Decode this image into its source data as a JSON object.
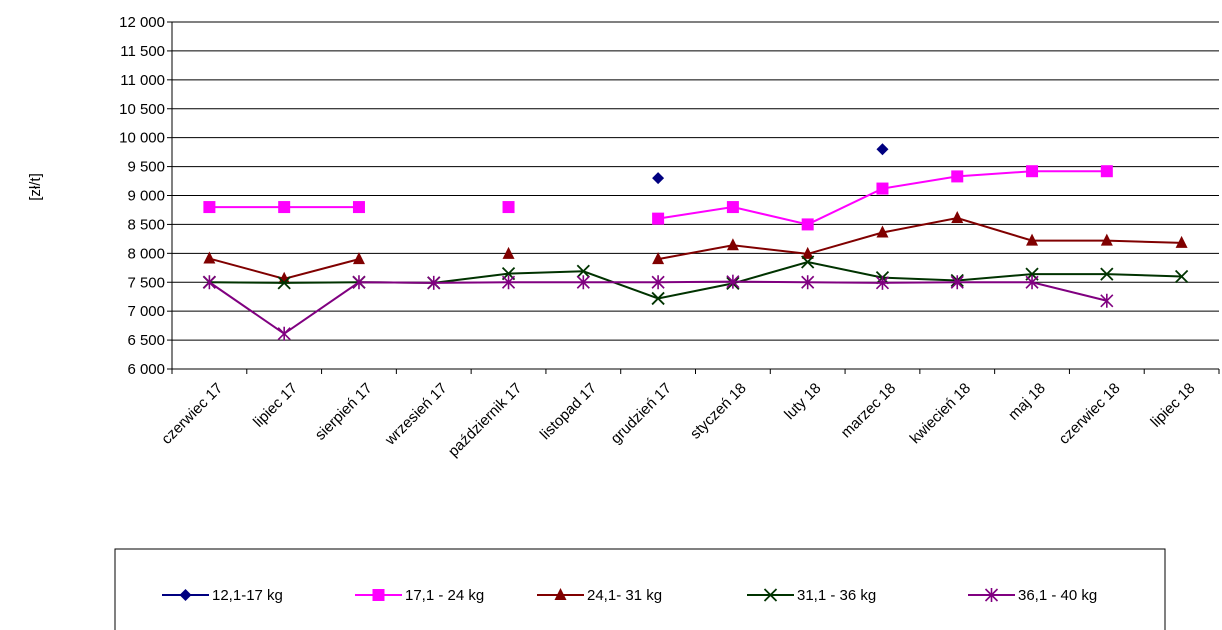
{
  "chart_data": {
    "type": "line",
    "title": "",
    "xlabel": "",
    "ylabel": "[zł/t]",
    "ylim": [
      6000,
      12000
    ],
    "y_ticks": [
      6000,
      6500,
      7000,
      7500,
      8000,
      8500,
      9000,
      9500,
      10000,
      10500,
      11000,
      11500,
      12000
    ],
    "y_tick_labels": [
      "6 000",
      "6 500",
      "7 000",
      "7 500",
      "8 000",
      "8 500",
      "9 000",
      "9 500",
      "10 000",
      "10 500",
      "11 000",
      "11 500",
      "12 000"
    ],
    "grid": true,
    "legend_position": "bottom",
    "categories": [
      "czerwiec 17",
      "lipiec 17",
      "sierpień 17",
      "wrzesień 17",
      "październik 17",
      "listopad 17",
      "grudzień 17",
      "styczeń 18",
      "luty 18",
      "marzec 18",
      "kwiecień 18",
      "maj 18",
      "czerwiec 18",
      "lipiec 18"
    ],
    "series": [
      {
        "name": "12,1-17 kg",
        "color": "#000080",
        "marker": "diamond",
        "values": [
          null,
          null,
          null,
          null,
          null,
          null,
          9300,
          null,
          null,
          9800,
          null,
          null,
          null,
          null
        ]
      },
      {
        "name": "17,1 - 24 kg",
        "color": "#ff00ff",
        "marker": "square",
        "values": [
          8800,
          8800,
          8800,
          null,
          8800,
          null,
          8600,
          8800,
          8500,
          9120,
          9330,
          9420,
          9420,
          null
        ]
      },
      {
        "name": "24,1- 31 kg",
        "color": "#800000",
        "marker": "triangle",
        "values": [
          7910,
          7560,
          7900,
          null,
          7990,
          null,
          7900,
          8140,
          7990,
          8360,
          8610,
          8220,
          8220,
          8180
        ]
      },
      {
        "name": "31,1 - 36 kg",
        "color": "#003300",
        "marker": "x",
        "values": [
          7500,
          7490,
          7500,
          7490,
          7650,
          7690,
          7220,
          7480,
          7850,
          7580,
          7530,
          7640,
          7640,
          7600
        ]
      },
      {
        "name": "36,1 - 40 kg",
        "color": "#800080",
        "marker": "star",
        "values": [
          7500,
          6610,
          7500,
          7490,
          7500,
          7500,
          7500,
          7510,
          7500,
          7490,
          7500,
          7500,
          7180,
          null
        ]
      }
    ]
  }
}
